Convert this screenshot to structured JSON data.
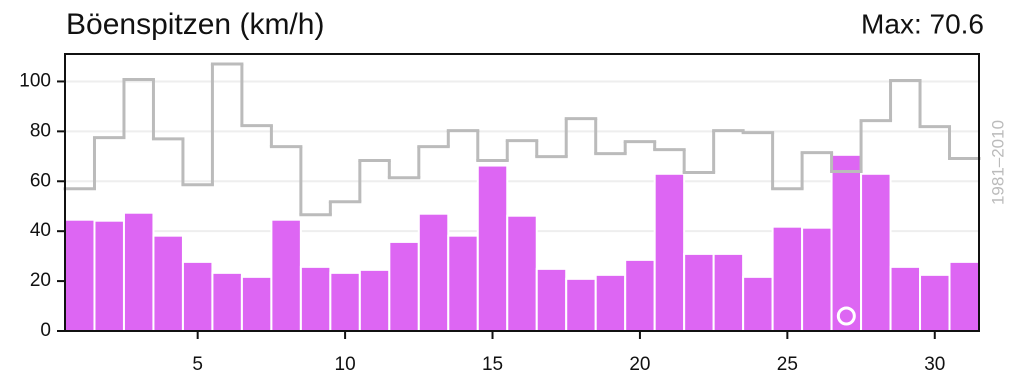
{
  "chart_data": {
    "type": "bar",
    "title": "Böenspitzen (km/h)",
    "annotation": "Max: 70.6",
    "x": [
      1,
      2,
      3,
      4,
      5,
      6,
      7,
      8,
      9,
      10,
      11,
      12,
      13,
      14,
      15,
      16,
      17,
      18,
      19,
      20,
      21,
      22,
      23,
      24,
      25,
      26,
      27,
      28,
      29,
      30,
      31
    ],
    "series": [
      {
        "type": "bar",
        "color": "#dd66f3",
        "values": [
          44.6,
          44.2,
          47.4,
          38.2,
          27.7,
          23.3,
          21.7,
          44.6,
          25.7,
          23.3,
          24.5,
          35.7,
          47,
          38.2,
          66.3,
          46.2,
          24.9,
          20.9,
          22.5,
          28.5,
          63,
          30.9,
          30.9,
          21.7,
          41.8,
          41.4,
          70.6,
          63,
          25.7,
          22.5,
          27.7
        ]
      },
      {
        "type": "step",
        "name": "1981–2010",
        "color": "#bbbbbb",
        "values": [
          57,
          77.5,
          100.8,
          77,
          58.6,
          107,
          82.3,
          73.9,
          46.6,
          51.8,
          68.3,
          61.4,
          73.9,
          80.3,
          68.3,
          76.3,
          69.9,
          85.1,
          71.1,
          75.9,
          72.7,
          63.5,
          80.3,
          79.5,
          57,
          71.5,
          63.9,
          84.3,
          100.4,
          81.9,
          69.1
        ]
      }
    ],
    "xlim": [
      0.5,
      31.5
    ],
    "xticks": [
      5,
      10,
      15,
      20,
      25,
      30
    ],
    "ylim": [
      0,
      111
    ],
    "yticks": [
      0,
      20,
      40,
      60,
      80,
      100
    ],
    "grid": true
  }
}
